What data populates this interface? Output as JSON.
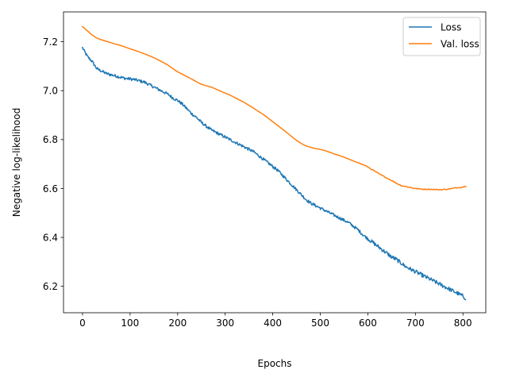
{
  "chart_data": {
    "type": "line",
    "title": "",
    "xlabel": "Epochs",
    "ylabel": "Negative log-likelihood",
    "xlim": [
      -40,
      848
    ],
    "ylim": [
      6.092,
      7.322
    ],
    "xticks": [
      0,
      100,
      200,
      300,
      400,
      500,
      600,
      700,
      800
    ],
    "yticks": [
      6.2,
      6.4,
      6.6,
      6.8,
      7.0,
      7.2
    ],
    "xtick_labels": [
      "0",
      "100",
      "200",
      "300",
      "400",
      "500",
      "600",
      "700",
      "800"
    ],
    "ytick_labels": [
      "6.2",
      "6.4",
      "6.6",
      "6.8",
      "7.0",
      "7.2"
    ],
    "grid": false,
    "legend_position": "top-right",
    "series": [
      {
        "name": "Loss",
        "color": "#1f77b4",
        "noisy": true,
        "x": [
          0,
          10,
          20,
          30,
          40,
          50,
          60,
          70,
          80,
          90,
          100,
          110,
          120,
          130,
          140,
          150,
          160,
          170,
          180,
          190,
          200,
          210,
          220,
          230,
          240,
          250,
          260,
          270,
          280,
          290,
          300,
          310,
          320,
          330,
          340,
          350,
          360,
          370,
          380,
          390,
          400,
          410,
          420,
          430,
          440,
          450,
          460,
          470,
          480,
          490,
          500,
          510,
          520,
          530,
          540,
          550,
          560,
          570,
          580,
          590,
          600,
          610,
          620,
          630,
          640,
          650,
          660,
          670,
          680,
          690,
          700,
          710,
          720,
          730,
          740,
          750,
          760,
          770,
          780,
          790,
          800,
          806
        ],
        "values": [
          7.175,
          7.14,
          7.12,
          7.09,
          7.08,
          7.07,
          7.065,
          7.06,
          7.055,
          7.05,
          7.048,
          7.045,
          7.04,
          7.035,
          7.025,
          7.015,
          7.005,
          6.995,
          6.985,
          6.97,
          6.96,
          6.945,
          6.925,
          6.905,
          6.89,
          6.87,
          6.855,
          6.84,
          6.83,
          6.82,
          6.81,
          6.8,
          6.79,
          6.78,
          6.77,
          6.76,
          6.75,
          6.735,
          6.72,
          6.705,
          6.69,
          6.675,
          6.655,
          6.635,
          6.615,
          6.595,
          6.575,
          6.555,
          6.54,
          6.53,
          6.52,
          6.51,
          6.5,
          6.49,
          6.48,
          6.47,
          6.46,
          6.445,
          6.43,
          6.41,
          6.395,
          6.38,
          6.365,
          6.35,
          6.335,
          6.32,
          6.31,
          6.295,
          6.28,
          6.27,
          6.26,
          6.25,
          6.24,
          6.23,
          6.22,
          6.21,
          6.2,
          6.19,
          6.18,
          6.17,
          6.16,
          6.15
        ]
      },
      {
        "name": "Val. loss",
        "color": "#ff7f0e",
        "noisy": false,
        "x": [
          0,
          10,
          20,
          30,
          40,
          50,
          60,
          70,
          80,
          90,
          100,
          110,
          120,
          130,
          140,
          150,
          160,
          170,
          180,
          190,
          200,
          210,
          220,
          230,
          240,
          250,
          260,
          270,
          280,
          290,
          300,
          310,
          320,
          330,
          340,
          350,
          360,
          370,
          380,
          390,
          400,
          410,
          420,
          430,
          440,
          450,
          460,
          470,
          480,
          490,
          500,
          510,
          520,
          530,
          540,
          550,
          560,
          570,
          580,
          590,
          600,
          610,
          620,
          630,
          640,
          650,
          660,
          670,
          680,
          690,
          700,
          710,
          720,
          730,
          740,
          750,
          760,
          770,
          780,
          790,
          800,
          806
        ],
        "values": [
          7.262,
          7.245,
          7.228,
          7.215,
          7.208,
          7.202,
          7.196,
          7.19,
          7.185,
          7.178,
          7.171,
          7.165,
          7.158,
          7.151,
          7.143,
          7.135,
          7.125,
          7.115,
          7.104,
          7.09,
          7.077,
          7.067,
          7.057,
          7.047,
          7.036,
          7.026,
          7.02,
          7.015,
          7.007,
          6.998,
          6.99,
          6.982,
          6.972,
          6.962,
          6.952,
          6.94,
          6.928,
          6.915,
          6.903,
          6.888,
          6.873,
          6.858,
          6.843,
          6.828,
          6.812,
          6.797,
          6.784,
          6.774,
          6.768,
          6.763,
          6.76,
          6.755,
          6.748,
          6.741,
          6.735,
          6.728,
          6.72,
          6.712,
          6.705,
          6.697,
          6.688,
          6.676,
          6.664,
          6.653,
          6.643,
          6.633,
          6.622,
          6.612,
          6.608,
          6.604,
          6.6,
          6.598,
          6.597,
          6.597,
          6.596,
          6.595,
          6.596,
          6.598,
          6.601,
          6.604,
          6.606,
          6.61
        ]
      }
    ]
  }
}
